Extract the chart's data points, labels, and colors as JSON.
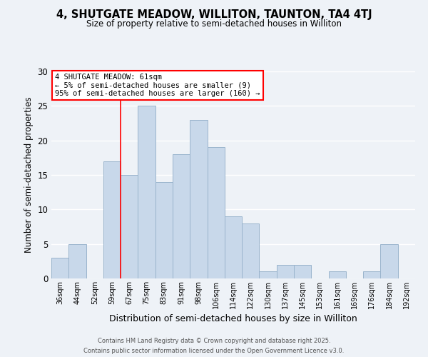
{
  "title": "4, SHUTGATE MEADOW, WILLITON, TAUNTON, TA4 4TJ",
  "subtitle": "Size of property relative to semi-detached houses in Williton",
  "xlabel": "Distribution of semi-detached houses by size in Williton",
  "ylabel": "Number of semi-detached properties",
  "bar_labels": [
    "36sqm",
    "44sqm",
    "52sqm",
    "59sqm",
    "67sqm",
    "75sqm",
    "83sqm",
    "91sqm",
    "98sqm",
    "106sqm",
    "114sqm",
    "122sqm",
    "130sqm",
    "137sqm",
    "145sqm",
    "153sqm",
    "161sqm",
    "169sqm",
    "176sqm",
    "184sqm",
    "192sqm"
  ],
  "bar_values": [
    3,
    5,
    0,
    17,
    15,
    25,
    14,
    18,
    23,
    19,
    9,
    8,
    1,
    2,
    2,
    0,
    1,
    0,
    1,
    5,
    0
  ],
  "bar_color": "#c8d8ea",
  "bar_edge_color": "#9ab4cc",
  "background_color": "#eef2f7",
  "grid_color": "#ffffff",
  "ylim": [
    0,
    30
  ],
  "yticks": [
    0,
    5,
    10,
    15,
    20,
    25,
    30
  ],
  "red_line_index": 3.5,
  "annotation_title": "4 SHUTGATE MEADOW: 61sqm",
  "annotation_line1": "← 5% of semi-detached houses are smaller (9)",
  "annotation_line2": "95% of semi-detached houses are larger (160) →",
  "footer1": "Contains HM Land Registry data © Crown copyright and database right 2025.",
  "footer2": "Contains public sector information licensed under the Open Government Licence v3.0."
}
